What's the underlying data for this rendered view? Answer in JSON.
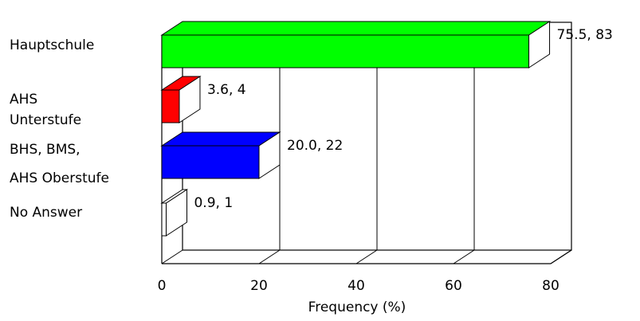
{
  "chart_data": {
    "type": "bar",
    "orientation": "horizontal",
    "three_d": true,
    "categories": [
      [
        "Hauptschule"
      ],
      [
        "AHS",
        "Unterstufe"
      ],
      [
        "BHS, BMS,",
        "AHS Oberstufe"
      ],
      [
        "No Answer"
      ]
    ],
    "values": [
      75.5,
      3.6,
      20.0,
      0.9
    ],
    "counts": [
      83,
      4,
      22,
      1
    ],
    "data_labels": [
      "75.5, 83",
      "3.6, 4",
      "20.0, 22",
      "0.9, 1"
    ],
    "colors": [
      "#00ff00",
      "#ff0000",
      "#0000ff",
      "#ffffff"
    ],
    "xlabel": "Frequency (%)",
    "xlim": [
      0,
      80
    ],
    "xticks": [
      "0",
      "20",
      "40",
      "60",
      "80"
    ],
    "grid": true,
    "legend": "none"
  }
}
